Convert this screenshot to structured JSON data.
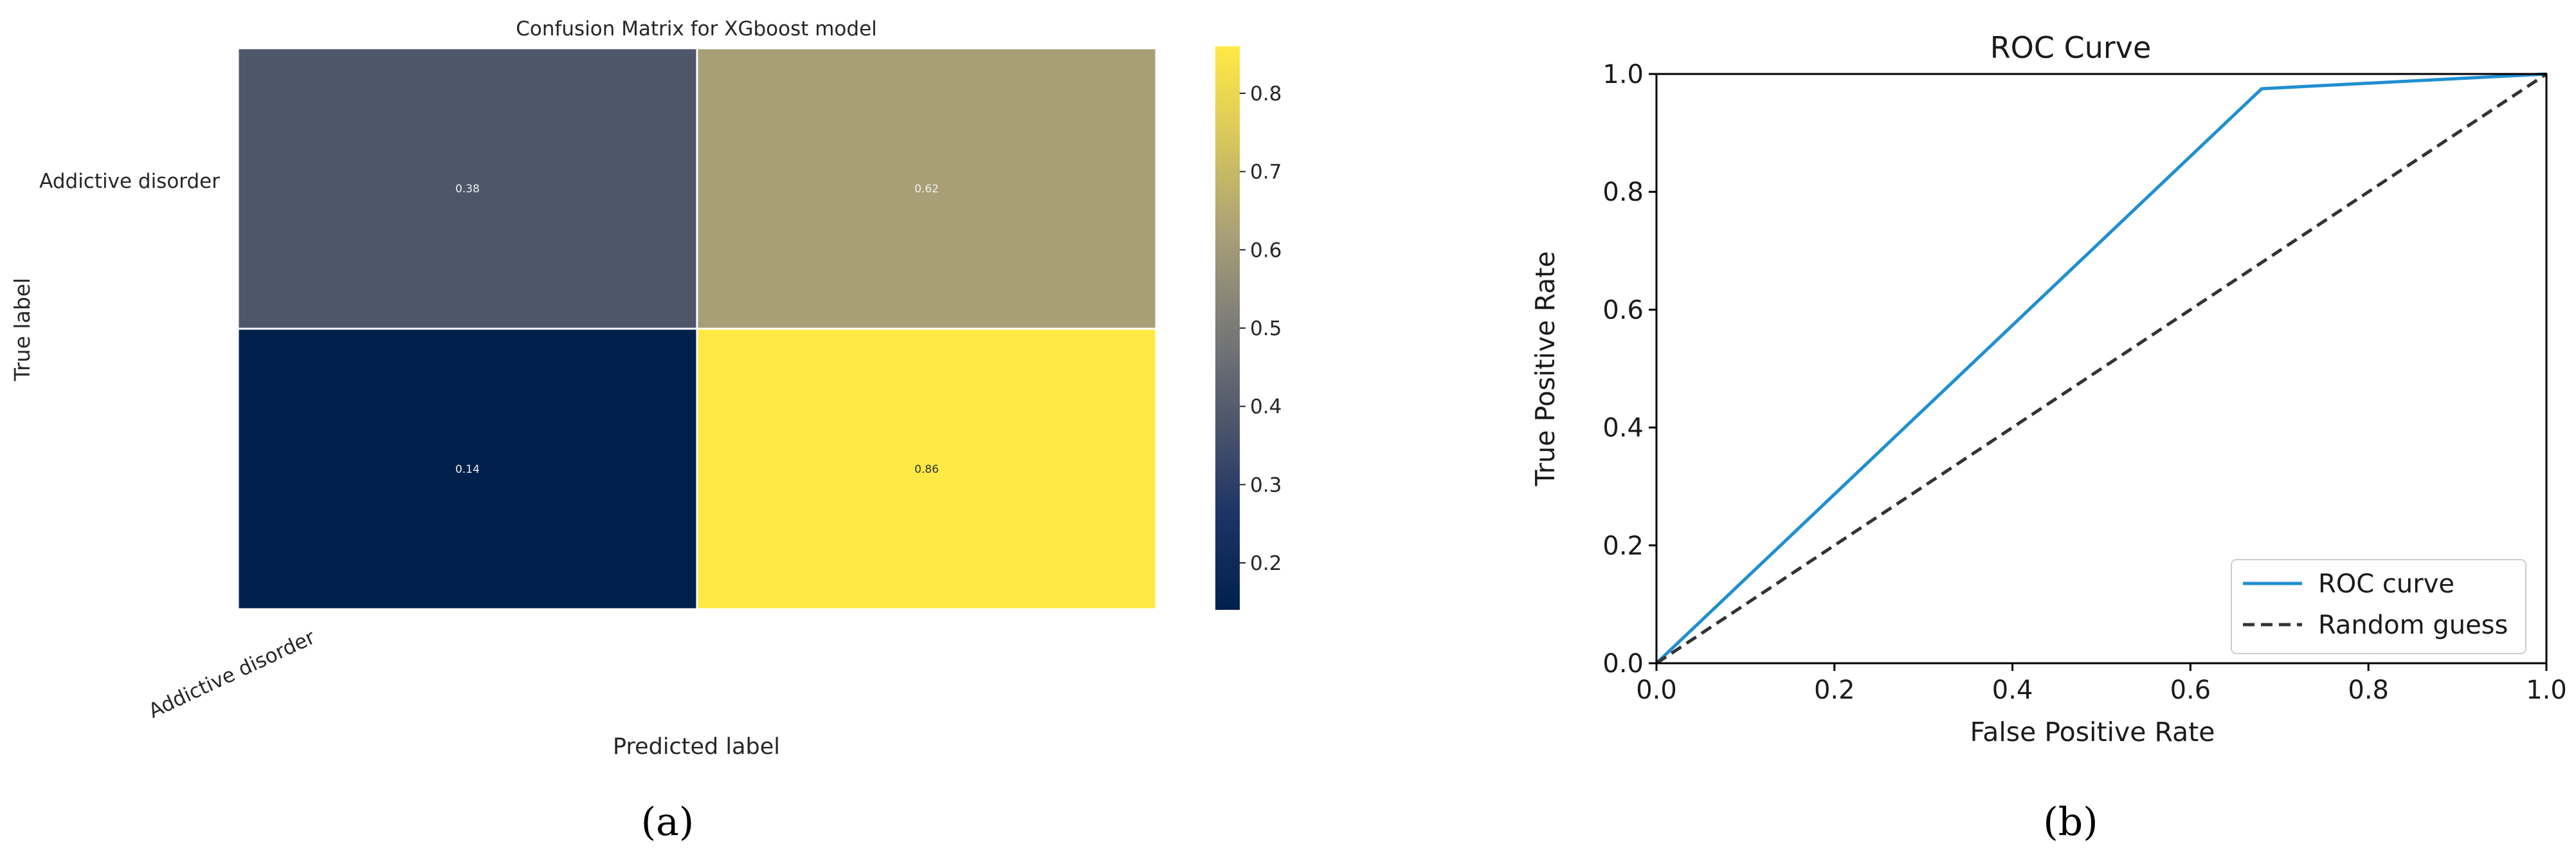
{
  "panels": {
    "a": {
      "caption": "(a)",
      "chart_data": {
        "type": "heatmap",
        "title": "Confusion Matrix for XGboost model",
        "xlabel": "Predicted label",
        "ylabel": "True label",
        "x_tick_labels": [
          "Addictive disorder"
        ],
        "y_tick_labels": [
          "Addictive disorder"
        ],
        "values": [
          [
            0.38,
            0.62
          ],
          [
            0.14,
            0.86
          ]
        ],
        "value_labels": [
          [
            "0.38",
            "0.62"
          ],
          [
            "0.14",
            "0.86"
          ]
        ],
        "colormap": "cividis",
        "colorbar": {
          "range": [
            0.14,
            0.86
          ],
          "ticks": [
            0.2,
            0.3,
            0.4,
            0.5,
            0.6,
            0.7,
            0.8
          ],
          "tick_labels": [
            "0.2",
            "0.3",
            "0.4",
            "0.5",
            "0.6",
            "0.7",
            "0.8"
          ]
        }
      }
    },
    "b": {
      "caption": "(b)",
      "chart_data": {
        "type": "line",
        "title": "ROC Curve",
        "xlabel": "False Positive Rate",
        "ylabel": "True Positive Rate",
        "xlim": [
          0,
          1
        ],
        "ylim": [
          0,
          1
        ],
        "x_ticks": [
          0.0,
          0.2,
          0.4,
          0.6,
          0.8,
          1.0
        ],
        "x_tick_labels": [
          "0.0",
          "0.2",
          "0.4",
          "0.6",
          "0.8",
          "1.0"
        ],
        "y_ticks": [
          0.0,
          0.2,
          0.4,
          0.6,
          0.8,
          1.0
        ],
        "y_tick_labels": [
          "0.0",
          "0.2",
          "0.4",
          "0.6",
          "0.8",
          "1.0"
        ],
        "grid": false,
        "legend_position": "lower-right",
        "series": [
          {
            "name": "ROC curve",
            "x": [
              0.0,
              0.68,
              1.0
            ],
            "y": [
              0.0,
              0.975,
              1.0
            ],
            "color": "#1f8fd0",
            "style": "solid"
          },
          {
            "name": "Random guess",
            "x": [
              0.0,
              1.0
            ],
            "y": [
              0.0,
              1.0
            ],
            "color": "#333333",
            "style": "dashed"
          }
        ]
      }
    }
  }
}
